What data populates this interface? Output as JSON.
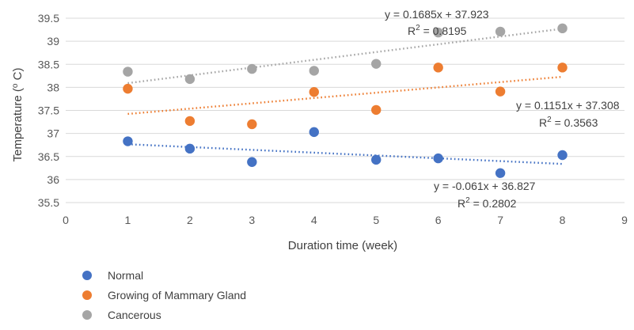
{
  "chart_data": {
    "type": "scatter",
    "xlabel": "Duration time (week)",
    "ylabel": "Temperature ( o C)",
    "ylabel_parts": {
      "before": "Temperature (",
      "superscript": "o",
      "after": " C)"
    },
    "xlim": [
      0,
      9
    ],
    "ylim": [
      35.5,
      39.5
    ],
    "xticks": [
      0,
      1,
      2,
      3,
      4,
      5,
      6,
      7,
      8,
      9
    ],
    "yticks": [
      35.5,
      36,
      36.5,
      37,
      37.5,
      38,
      38.5,
      39,
      39.5
    ],
    "xtick_labels": [
      "0",
      "1",
      "2",
      "3",
      "4",
      "5",
      "6",
      "7",
      "8",
      "9"
    ],
    "ytick_labels": [
      "35.5",
      "36",
      "36.5",
      "37",
      "37.5",
      "38",
      "38.5",
      "39",
      "39.5"
    ],
    "grid": "horizontal",
    "legend": "bottom-left",
    "series": [
      {
        "name": "Normal",
        "color": "#4472c4",
        "x": [
          1,
          2,
          3,
          4,
          5,
          6,
          7,
          8
        ],
        "y": [
          36.83,
          36.67,
          36.38,
          37.03,
          36.43,
          36.46,
          36.14,
          36.53
        ],
        "trendline": {
          "slope": -0.061,
          "intercept": 36.827,
          "equation": "y = -0.061x + 36.827",
          "r2_prefix": "R",
          "r2_exp": "2",
          "r2_value": " = 0.2802"
        }
      },
      {
        "name": "Growing of Mammary Gland",
        "color": "#ed7d31",
        "x": [
          1,
          2,
          3,
          4,
          5,
          6,
          7,
          8
        ],
        "y": [
          37.97,
          37.27,
          37.2,
          37.9,
          37.51,
          38.43,
          37.91,
          38.43
        ],
        "trendline": {
          "slope": 0.1151,
          "intercept": 37.308,
          "equation": "y = 0.1151x + 37.308",
          "r2_prefix": "R",
          "r2_exp": "2",
          "r2_value": " = 0.3563"
        }
      },
      {
        "name": "Cancerous",
        "color": "#a5a5a5",
        "x": [
          1,
          2,
          3,
          4,
          5,
          6,
          7,
          8
        ],
        "y": [
          38.34,
          38.18,
          38.4,
          38.36,
          38.51,
          39.19,
          39.21,
          39.28
        ],
        "trendline": {
          "slope": 0.1685,
          "intercept": 37.923,
          "equation": "y = 0.1685x + 37.923",
          "r2_prefix": "R",
          "r2_exp": "2",
          "r2_value": " = 0.8195"
        }
      }
    ]
  }
}
